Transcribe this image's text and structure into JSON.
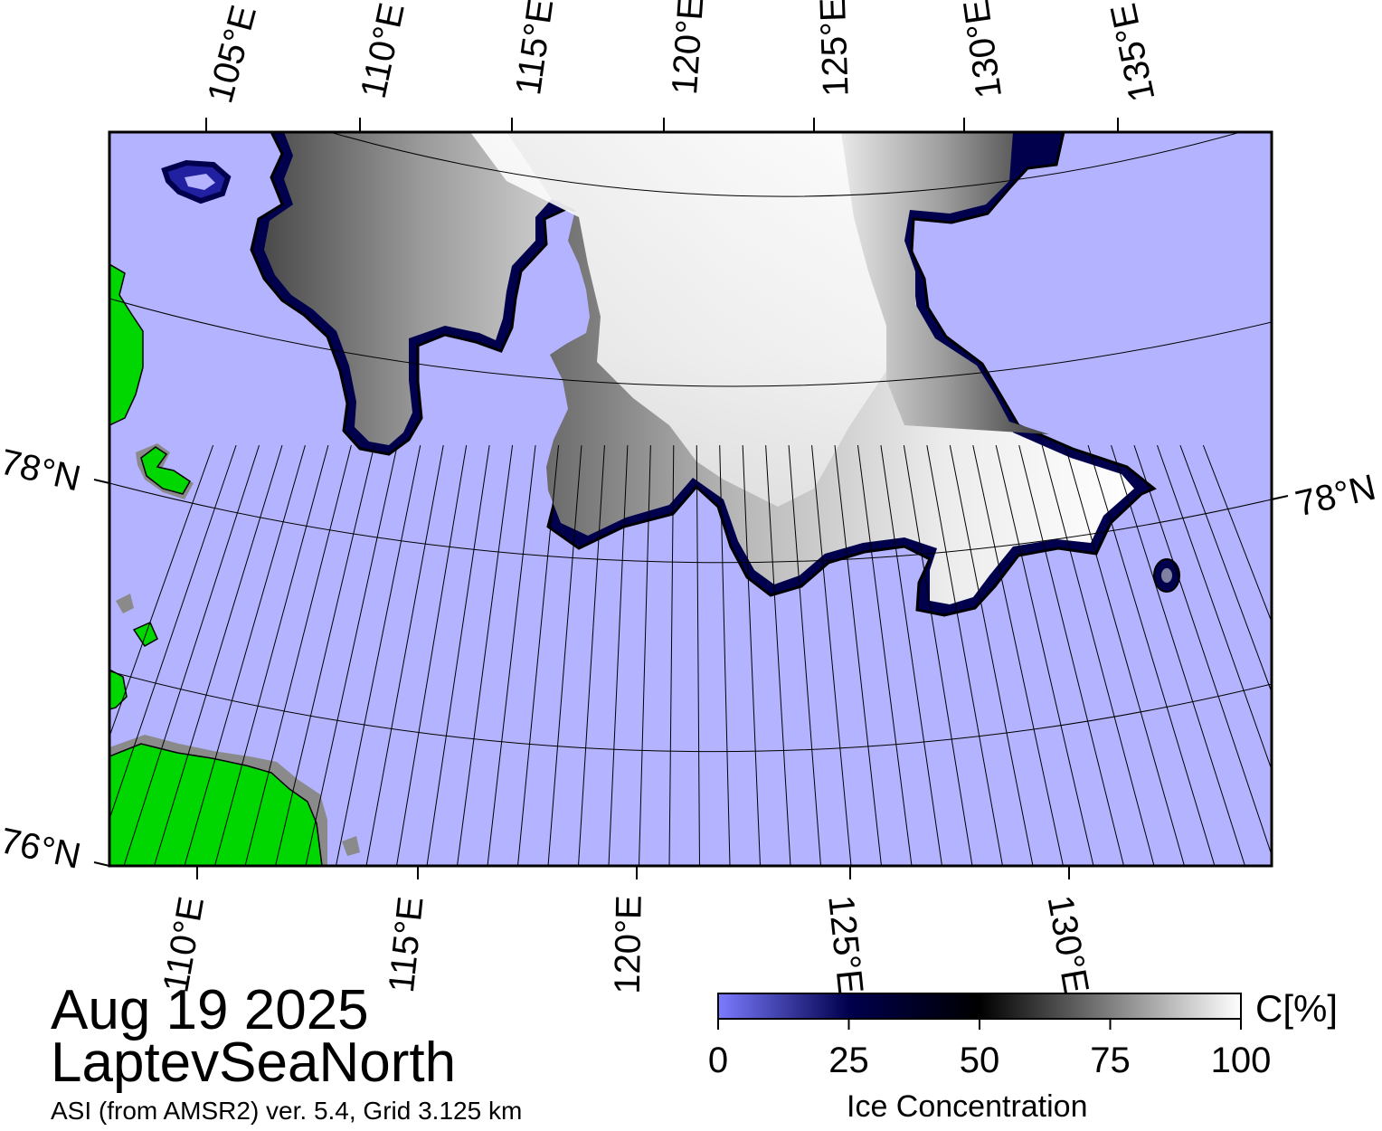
{
  "map": {
    "date": "Aug 19 2025",
    "region": "LaptevSeaNorth",
    "source": "ASI (from AMSR2) ver. 5.4,  Grid 3.125 km",
    "colors": {
      "open_water": "#b3b3ff",
      "land": "#00d600",
      "coast_mask": "#8a8a8a",
      "ice_edge": "#00004d"
    },
    "top_lon_labels": [
      "105°E",
      "110°E",
      "115°E",
      "120°E",
      "125°E",
      "130°E",
      "135°E"
    ],
    "bottom_lon_labels": [
      "110°E",
      "115°E",
      "120°E",
      "125°E",
      "130°E"
    ],
    "lat_labels": [
      {
        "side": "left",
        "text": "78°N"
      },
      {
        "side": "right",
        "text": "78°N"
      },
      {
        "side": "left",
        "text": "76°N"
      }
    ]
  },
  "colorbar": {
    "title": "Ice Concentration",
    "unit": "C[%]",
    "ticks": [
      "0",
      "25",
      "50",
      "75",
      "100"
    ],
    "range": [
      0,
      100
    ],
    "stops": [
      "#7b7bff",
      "#00004d",
      "#000000",
      "#ffffff"
    ]
  }
}
